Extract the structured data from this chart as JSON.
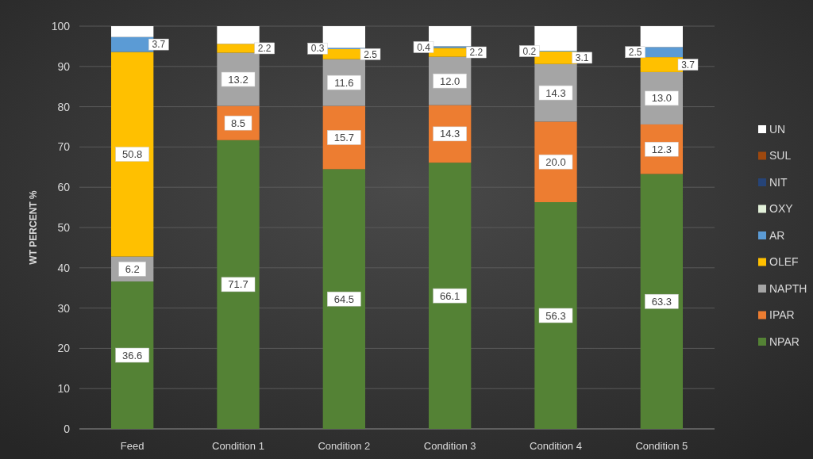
{
  "chart_data": {
    "type": "bar",
    "stacked": true,
    "ylabel": "WT PERCENT %",
    "categories": [
      "Feed",
      "Condition 1",
      "Condition 2",
      "Condition 3",
      "Condition 4",
      "Condition 5"
    ],
    "series": [
      {
        "name": "NPAR",
        "color": "#548235",
        "values": [
          36.6,
          71.7,
          64.5,
          66.1,
          56.3,
          63.3
        ],
        "value_labels": [
          "36.6",
          "71.7",
          "64.5",
          "66.1",
          "56.3",
          "63.3"
        ]
      },
      {
        "name": "IPAR",
        "color": "#ed7d31",
        "values": [
          0,
          8.5,
          15.7,
          14.3,
          20.0,
          12.3
        ],
        "value_labels": [
          null,
          "8.5",
          "15.7",
          "14.3",
          "20.0",
          "12.3"
        ]
      },
      {
        "name": "NAPTH",
        "color": "#a5a5a5",
        "values": [
          6.2,
          13.2,
          11.6,
          12.0,
          14.3,
          13.0
        ],
        "value_labels": [
          "6.2",
          "13.2",
          "11.6",
          "12.0",
          "14.3",
          "13.0"
        ]
      },
      {
        "name": "OLEF",
        "color": "#ffc000",
        "values": [
          50.8,
          2.2,
          2.5,
          2.2,
          3.1,
          3.7
        ],
        "value_labels": [
          "50.8",
          "2.2",
          "2.5",
          "2.2",
          "3.1",
          "3.7"
        ]
      },
      {
        "name": "AR",
        "color": "#5b9bd5",
        "values": [
          3.7,
          0,
          0.3,
          0.4,
          0.2,
          2.5
        ],
        "value_labels": [
          "3.7",
          null,
          "0.3",
          "0.4",
          "0.2",
          "2.5"
        ]
      },
      {
        "name": "OXY",
        "color": "#e2f0d9",
        "values": [
          0,
          0,
          0,
          0,
          0,
          0
        ]
      },
      {
        "name": "NIT",
        "color": "#264478",
        "values": [
          0,
          0,
          0,
          0,
          0,
          0
        ]
      },
      {
        "name": "SUL",
        "color": "#9e480e",
        "values": [
          0,
          0,
          0,
          0,
          0,
          0
        ]
      },
      {
        "name": "UN",
        "color": "#ffffff",
        "values": [
          2.7,
          4.4,
          5.4,
          5.0,
          6.1,
          5.2
        ]
      }
    ],
    "ylim": [
      0,
      100
    ],
    "yticks": [
      0,
      10,
      20,
      30,
      40,
      50,
      60,
      70,
      80,
      90,
      100
    ],
    "grid": "y",
    "legend": "right"
  }
}
